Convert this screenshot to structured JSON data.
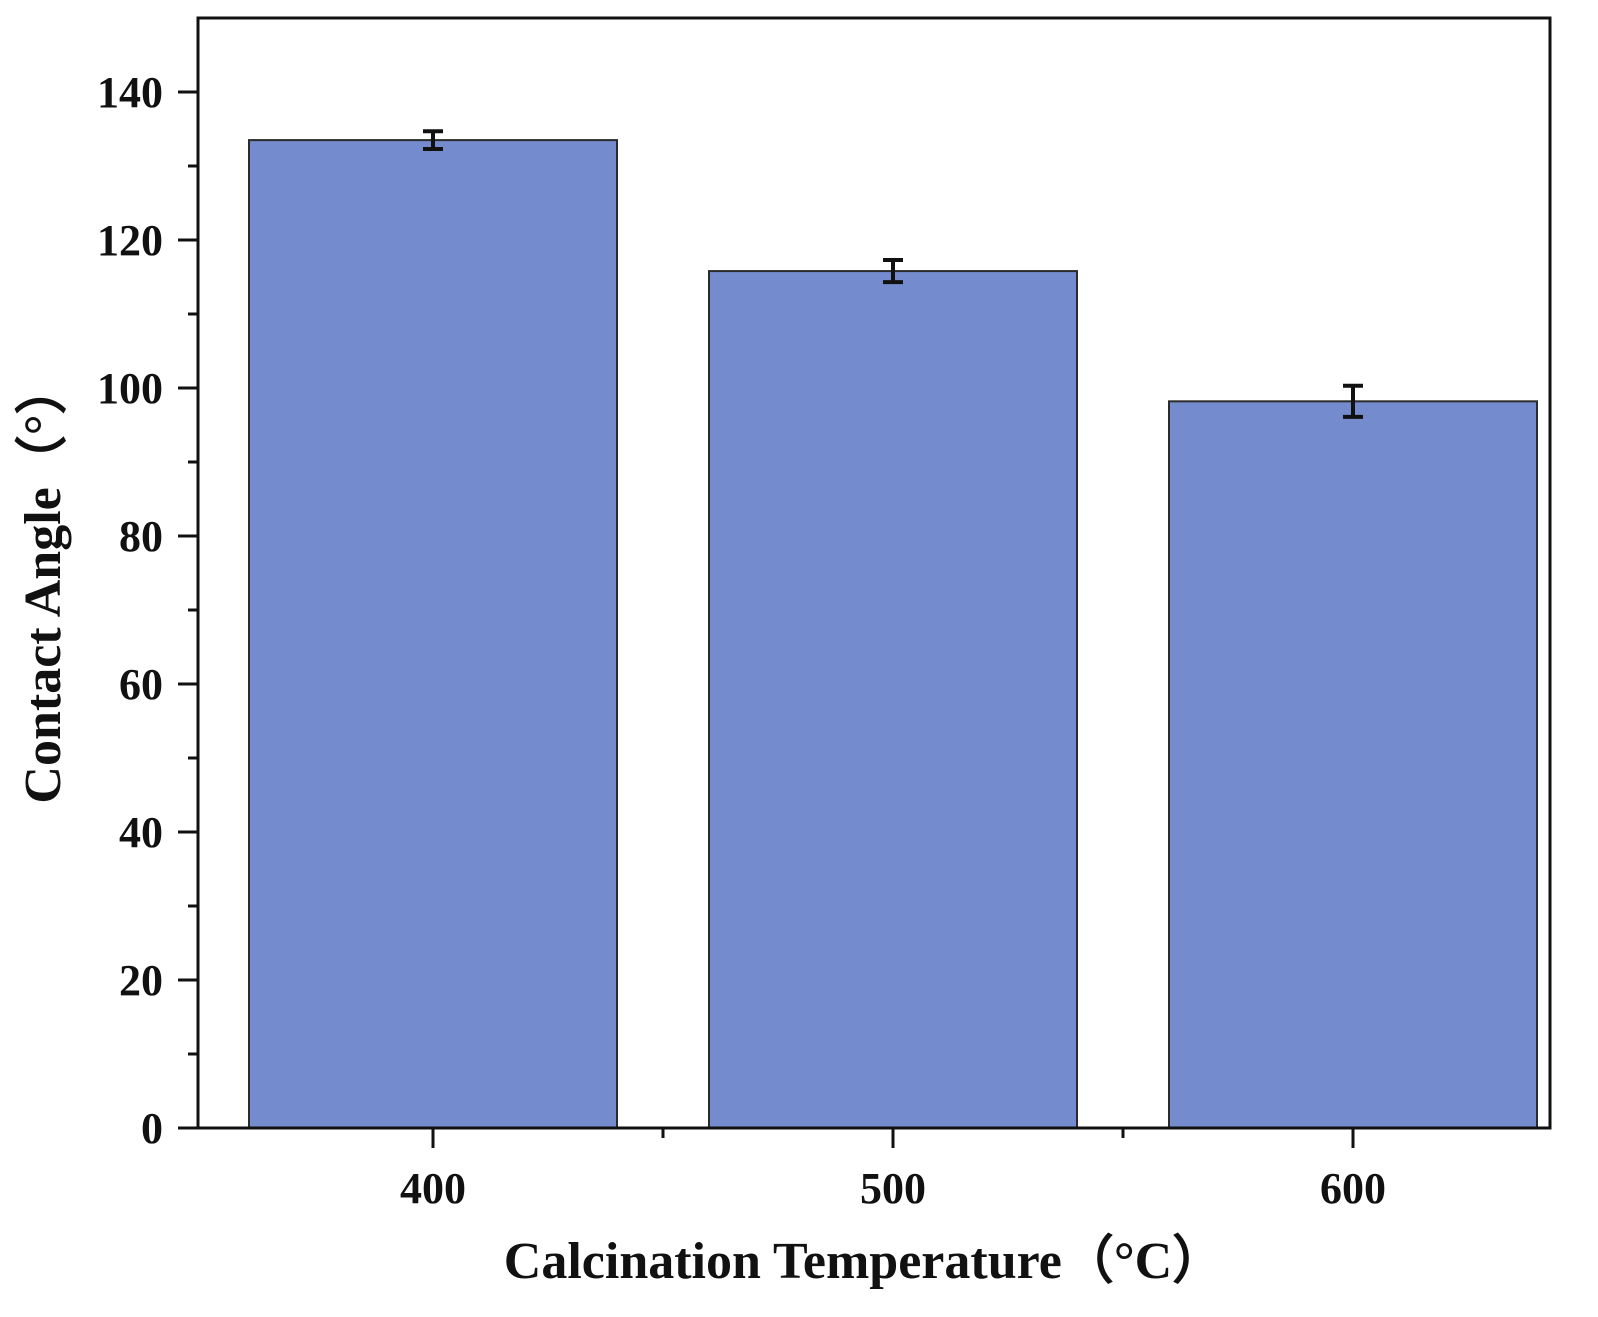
{
  "chart_data": {
    "type": "bar",
    "categories": [
      "400",
      "500",
      "600"
    ],
    "series": [
      {
        "values": [
          133.5,
          115.8,
          98.2
        ],
        "errors": [
          1.2,
          1.5,
          2.1
        ]
      }
    ],
    "xlabel": "Calcination Temperature（°C）",
    "ylabel": "Contact Angle（°）",
    "ylim": [
      0,
      150
    ],
    "yticks": [
      0,
      20,
      40,
      60,
      80,
      100,
      120,
      140
    ],
    "grid": false,
    "bar_color": "#748bcd",
    "bar_edge_color": "#2b2b2b"
  }
}
